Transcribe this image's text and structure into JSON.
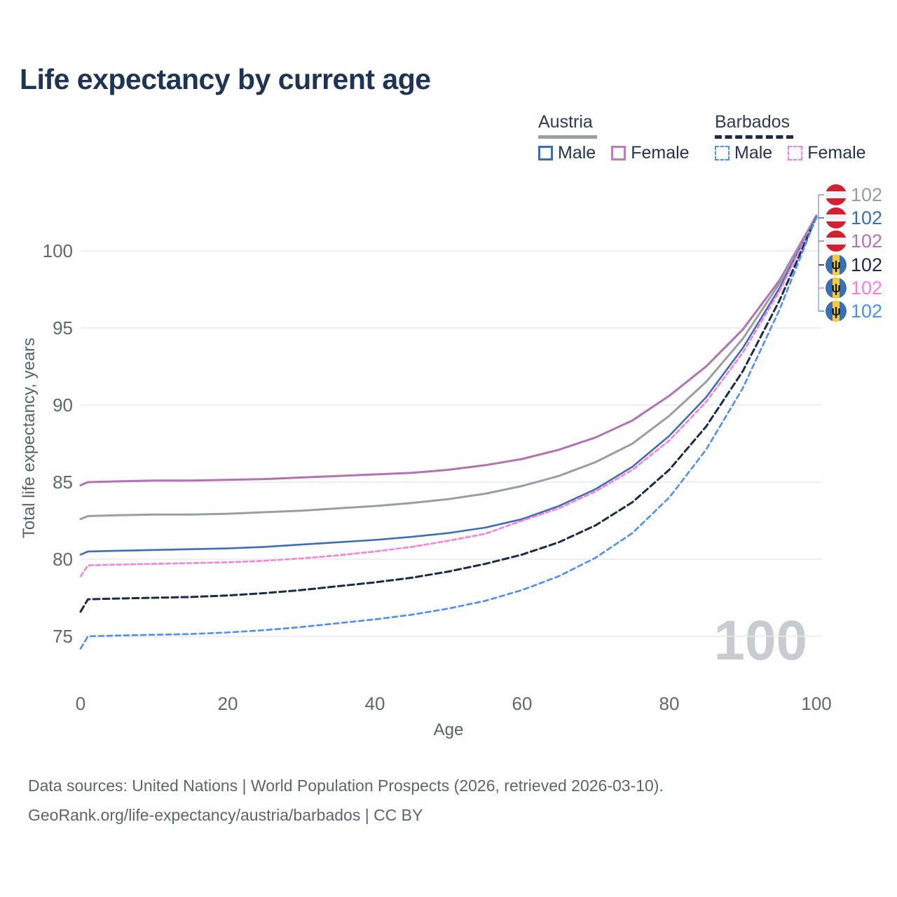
{
  "title": "Life expectancy by current age",
  "legend": {
    "groups": [
      {
        "label": "Austria",
        "line_style": "solid",
        "underline_color": "#9b9ea1",
        "items": [
          {
            "label": "Male",
            "color": "#3f6db5",
            "dashed": false
          },
          {
            "label": "Female",
            "color": "#bb7fbb",
            "dashed": false
          }
        ]
      },
      {
        "label": "Barbados",
        "line_style": "dashed",
        "underline_color": "#1c2b48",
        "items": [
          {
            "label": "Male",
            "color": "#4d8ef7",
            "dashed": true
          },
          {
            "label": "Female",
            "color": "#fb7ede",
            "dashed": true
          }
        ]
      }
    ]
  },
  "chart_data": {
    "type": "line",
    "title": "Life expectancy by current age",
    "xlabel": "Age",
    "ylabel": "Total life expectancy, years",
    "x_ticks": [
      0,
      20,
      40,
      60,
      80,
      100
    ],
    "y_ticks": [
      75,
      80,
      85,
      90,
      95,
      100
    ],
    "xlim": [
      0,
      100
    ],
    "ylim": [
      73.5,
      103
    ],
    "grid": "horizontal",
    "legend_position": "top-right",
    "age_watermark": "100",
    "x": [
      0,
      1,
      5,
      10,
      15,
      20,
      25,
      30,
      35,
      40,
      45,
      50,
      55,
      60,
      65,
      70,
      75,
      80,
      85,
      90,
      95,
      100
    ],
    "series": [
      {
        "name": "Austria Female",
        "country": "Austria",
        "sex": "Female",
        "color": "#b173b1",
        "dash": null,
        "width": 3,
        "values": [
          84.8,
          85.0,
          85.05,
          85.1,
          85.1,
          85.15,
          85.2,
          85.3,
          85.4,
          85.5,
          85.6,
          85.8,
          86.1,
          86.5,
          87.1,
          87.9,
          89.0,
          90.6,
          92.5,
          94.9,
          98.1,
          102.3
        ]
      },
      {
        "name": "Austria Total",
        "country": "Austria",
        "sex": "Total",
        "color": "#9b9ea1",
        "dash": null,
        "width": 3,
        "values": [
          82.6,
          82.8,
          82.85,
          82.9,
          82.9,
          82.95,
          83.05,
          83.15,
          83.3,
          83.45,
          83.65,
          83.9,
          84.25,
          84.75,
          85.4,
          86.3,
          87.5,
          89.3,
          91.5,
          94.3,
          97.9,
          102.3
        ]
      },
      {
        "name": "Austria Male",
        "country": "Austria",
        "sex": "Male",
        "color": "#3f6db5",
        "dash": null,
        "width": 2.6,
        "values": [
          80.3,
          80.5,
          80.55,
          80.6,
          80.65,
          80.7,
          80.8,
          80.95,
          81.1,
          81.25,
          81.45,
          81.7,
          82.05,
          82.6,
          83.45,
          84.55,
          86.0,
          88.0,
          90.5,
          93.7,
          97.6,
          102.25
        ]
      },
      {
        "name": "Barbados Female",
        "country": "Barbados",
        "sex": "Female",
        "color": "#fb7ede",
        "dash": "6 4",
        "width": 2.6,
        "values": [
          78.9,
          79.6,
          79.65,
          79.7,
          79.75,
          79.8,
          79.9,
          80.05,
          80.25,
          80.5,
          80.8,
          81.2,
          81.65,
          82.5,
          83.3,
          84.4,
          85.8,
          87.7,
          90.2,
          93.4,
          97.4,
          102.25
        ]
      },
      {
        "name": "Barbados Total",
        "country": "Barbados",
        "sex": "Total",
        "color": "#1c2b48",
        "dash": "9 5",
        "width": 3,
        "values": [
          76.6,
          77.4,
          77.45,
          77.5,
          77.55,
          77.65,
          77.8,
          78.0,
          78.25,
          78.5,
          78.8,
          79.2,
          79.7,
          80.3,
          81.1,
          82.2,
          83.7,
          85.8,
          88.6,
          92.2,
          96.8,
          102.2
        ]
      },
      {
        "name": "Barbados Male",
        "country": "Barbados",
        "sex": "Male",
        "color": "#4d8ef7",
        "dash": "7 5",
        "width": 2.6,
        "values": [
          74.2,
          75.0,
          75.05,
          75.1,
          75.15,
          75.25,
          75.4,
          75.6,
          75.85,
          76.1,
          76.4,
          76.8,
          77.3,
          78.0,
          78.9,
          80.1,
          81.7,
          84.0,
          87.1,
          91.1,
          96.2,
          102.2
        ]
      }
    ],
    "end_labels": [
      {
        "series": "Austria Total",
        "flag": "austria",
        "value": "102",
        "color": "#999c9f"
      },
      {
        "series": "Austria Male",
        "flag": "austria",
        "value": "102",
        "color": "#3f6db5"
      },
      {
        "series": "Austria Female",
        "flag": "austria",
        "value": "102",
        "color": "#b173b1"
      },
      {
        "series": "Barbados Total",
        "flag": "barbados",
        "value": "102",
        "color": "#1e2c49"
      },
      {
        "series": "Barbados Female",
        "flag": "barbados",
        "value": "102",
        "color": "#fb7ede"
      },
      {
        "series": "Barbados Male",
        "flag": "barbados",
        "value": "102",
        "color": "#4d8ef7"
      }
    ]
  },
  "footer": {
    "line1": "Data sources: United Nations | World Population Prospects (2026, retrieved 2026-03-10).",
    "line2": "GeoRank.org/life-expectancy/austria/barbados | CC BY"
  }
}
